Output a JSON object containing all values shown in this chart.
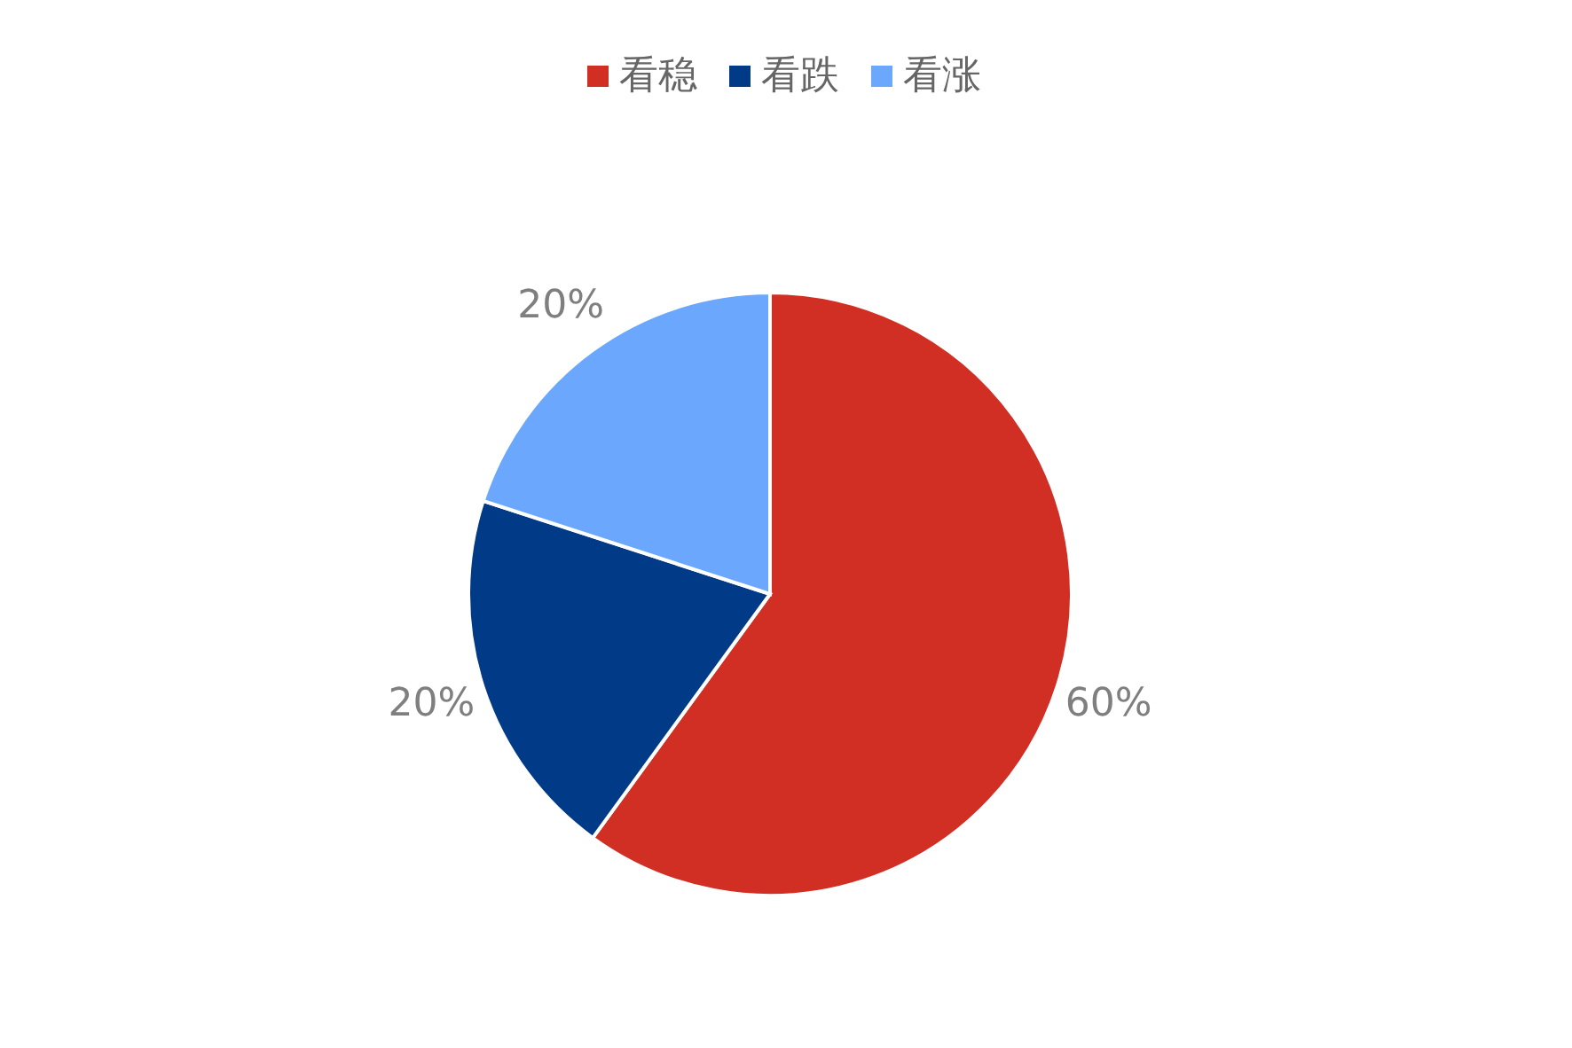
{
  "chart_data": {
    "type": "pie",
    "categories": [
      "看稳",
      "看跌",
      "看涨"
    ],
    "values": [
      60,
      20,
      20
    ],
    "colors": [
      "#d22f24",
      "#013a86",
      "#6aa7fd"
    ],
    "value_labels": [
      "60%",
      "20%",
      "20%"
    ],
    "legend": "top"
  }
}
